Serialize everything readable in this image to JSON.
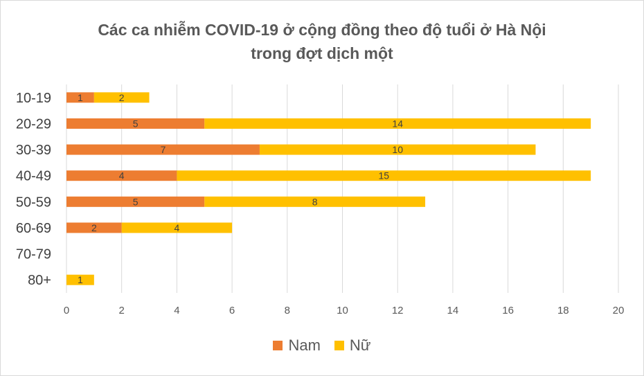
{
  "chart_data": {
    "type": "bar",
    "orientation": "horizontal",
    "stacked": true,
    "title_line1": "Các ca nhiễm COVID-19 ở cộng đồng theo độ tuổi ở Hà Nội",
    "title_line2": "trong đợt dịch một",
    "categories": [
      "10-19",
      "20-29",
      "30-39",
      "40-49",
      "50-59",
      "60-69",
      "70-79",
      "80+"
    ],
    "series": [
      {
        "name": "Nam",
        "color": "#ed7d31",
        "values": [
          1,
          5,
          7,
          4,
          5,
          2,
          0,
          0
        ]
      },
      {
        "name": "Nữ",
        "color": "#ffc000",
        "values": [
          2,
          14,
          10,
          15,
          8,
          4,
          0,
          1
        ]
      }
    ],
    "xlim": [
      0,
      20
    ],
    "xticks": [
      0,
      2,
      4,
      6,
      8,
      10,
      12,
      14,
      16,
      18,
      20
    ],
    "grid": true,
    "legend_position": "bottom"
  }
}
